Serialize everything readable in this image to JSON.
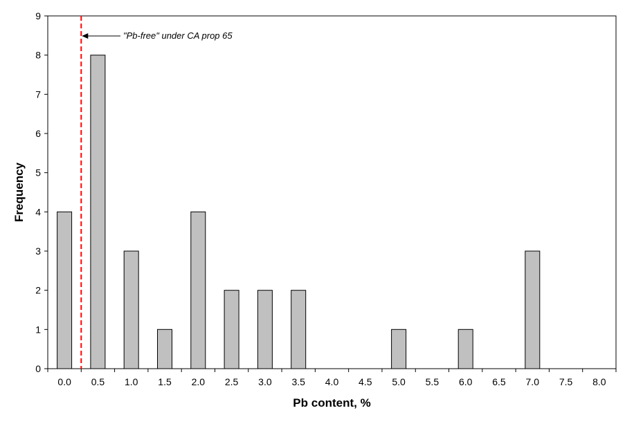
{
  "chart_data": {
    "type": "bar",
    "title": "",
    "xlabel": "Pb content, %",
    "ylabel": "Frequency",
    "categories": [
      "0.0",
      "0.5",
      "1.0",
      "1.5",
      "2.0",
      "2.5",
      "3.0",
      "3.5",
      "4.0",
      "4.5",
      "5.0",
      "5.5",
      "6.0",
      "6.5",
      "7.0",
      "7.5",
      "8.0"
    ],
    "values": [
      4,
      8,
      3,
      1,
      4,
      2,
      2,
      2,
      0,
      0,
      1,
      0,
      1,
      0,
      3,
      0,
      0
    ],
    "ylim": [
      0,
      9
    ],
    "yticks": [
      0,
      1,
      2,
      3,
      4,
      5,
      6,
      7,
      8,
      9
    ],
    "grid": false,
    "legend": "none",
    "bar_color": "#c0c0c0",
    "bar_edge_color": "#000000",
    "reference_line": {
      "x": 0.25,
      "color": "#ff0000",
      "style": "dashed",
      "annotation": "\"Pb-free\" under CA prop 65"
    }
  }
}
